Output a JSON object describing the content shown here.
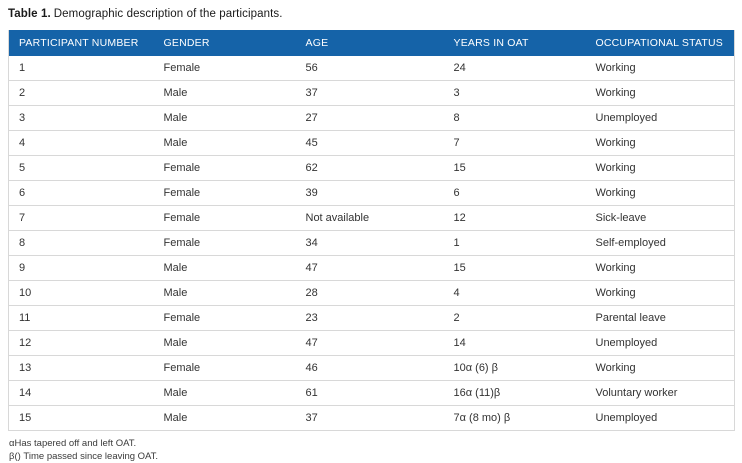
{
  "title": {
    "label": "Table 1.",
    "text": "Demographic description of the participants."
  },
  "table": {
    "columns": [
      "PARTICIPANT NUMBER",
      "GENDER",
      "AGE",
      "YEARS IN OAT",
      "OCCUPATIONAL STATUS"
    ],
    "rows": [
      [
        "1",
        "Female",
        "56",
        "24",
        "Working"
      ],
      [
        "2",
        "Male",
        "37",
        "3",
        "Working"
      ],
      [
        "3",
        "Male",
        "27",
        "8",
        "Unemployed"
      ],
      [
        "4",
        "Male",
        "45",
        "7",
        "Working"
      ],
      [
        "5",
        "Female",
        "62",
        "15",
        "Working"
      ],
      [
        "6",
        "Female",
        "39",
        "6",
        "Working"
      ],
      [
        "7",
        "Female",
        "Not available",
        "12",
        "Sick-leave"
      ],
      [
        "8",
        "Female",
        "34",
        "1",
        "Self-employed"
      ],
      [
        "9",
        "Male",
        "47",
        "15",
        "Working"
      ],
      [
        "10",
        "Male",
        "28",
        "4",
        "Working"
      ],
      [
        "11",
        "Female",
        "23",
        "2",
        "Parental leave"
      ],
      [
        "12",
        "Male",
        "47",
        "14",
        "Unemployed"
      ],
      [
        "13",
        "Female",
        "46",
        "10α (6) β",
        "Working"
      ],
      [
        "14",
        "Male",
        "61",
        "16α (11)β",
        "Voluntary worker"
      ],
      [
        "15",
        "Male",
        "37",
        "7α (8 mo) β",
        "Unemployed"
      ]
    ]
  },
  "footnotes": [
    "αHas tapered off and left OAT.",
    "β() Time passed since leaving OAT."
  ],
  "colors": {
    "header_bg": "#1563a8",
    "header_text": "#ffffff",
    "cell_text": "#333333",
    "border": "#d8d8d8"
  }
}
